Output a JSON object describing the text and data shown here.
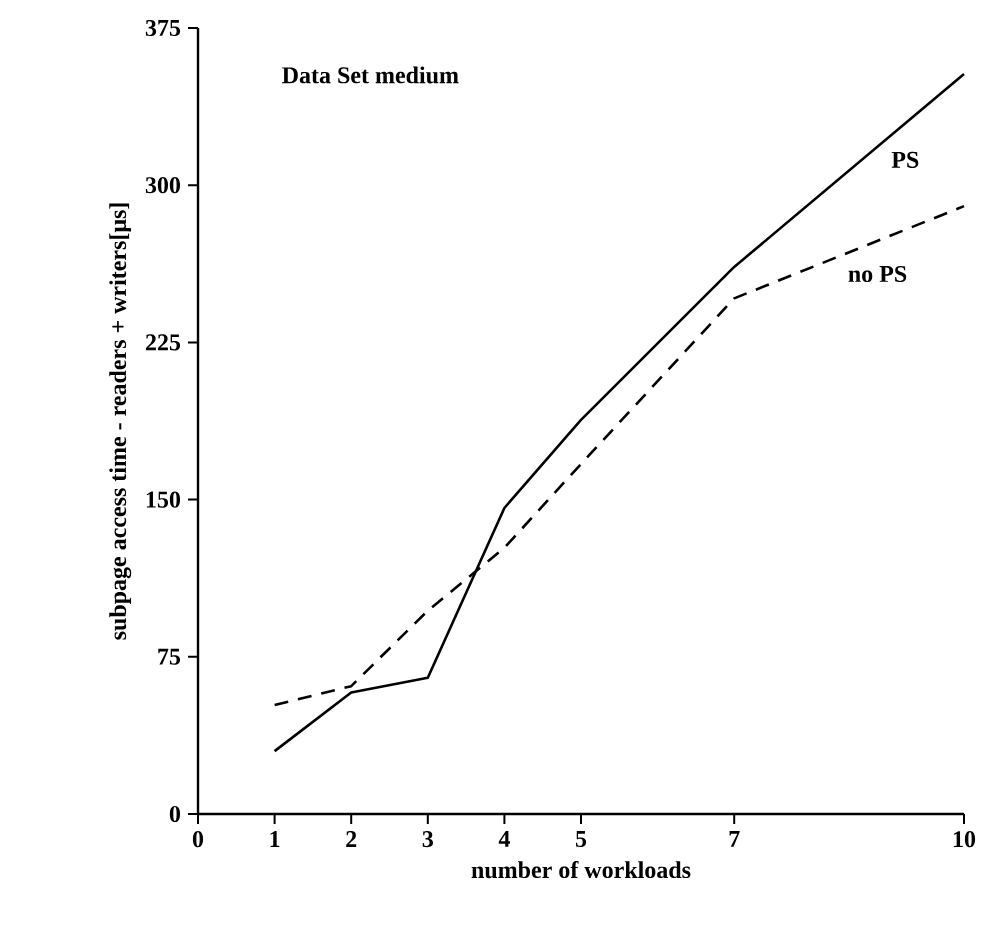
{
  "chart_data": {
    "type": "line",
    "title": "Data Set medium",
    "xlabel": "number of workloads",
    "ylabel": "subpage access time - readers + writers[μs]",
    "x": [
      1,
      2,
      3,
      4,
      5,
      7,
      10
    ],
    "series": [
      {
        "name": "PS",
        "color": "#000000",
        "line_style": "solid",
        "values": [
          30,
          58,
          65,
          146,
          188,
          261,
          353
        ]
      },
      {
        "name": "no PS",
        "color": "#000000",
        "line_style": "dashed",
        "values": [
          52,
          61,
          97,
          127,
          167,
          246,
          290
        ]
      }
    ],
    "xlim": [
      0,
      10
    ],
    "ylim": [
      0,
      375
    ],
    "xticks": [
      0,
      1,
      2,
      3,
      4,
      5,
      7,
      10
    ],
    "yticks": [
      0,
      75,
      150,
      225,
      300,
      375
    ],
    "marker": "none",
    "grid": false
  }
}
